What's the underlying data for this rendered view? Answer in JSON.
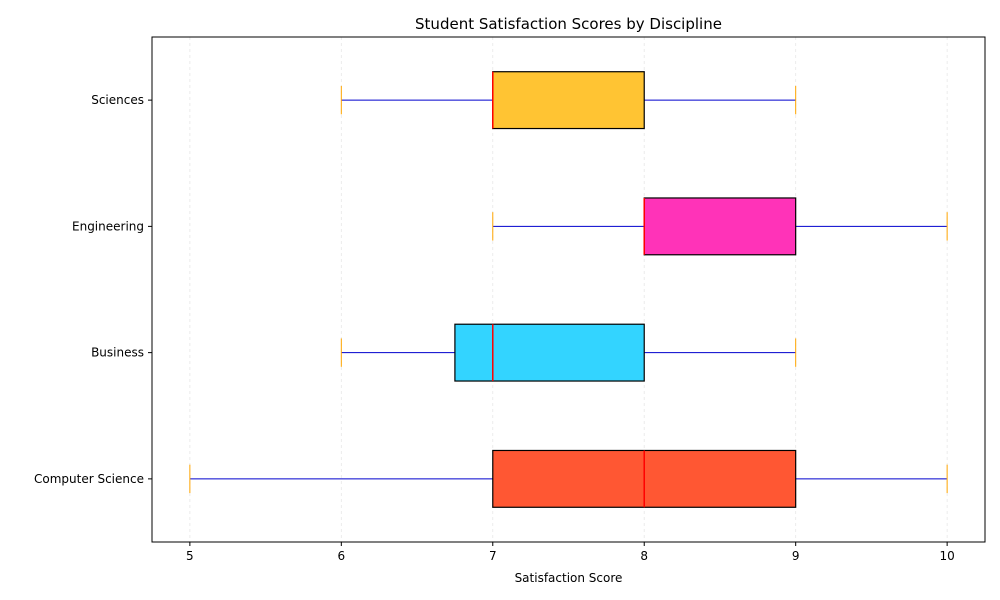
{
  "chart_data": {
    "type": "boxplot",
    "orientation": "horizontal",
    "title": "Student Satisfaction Scores by Discipline",
    "xlabel": "Satisfaction Score",
    "ylabel": "",
    "xlim": [
      4.75,
      10.25
    ],
    "x_ticks": [
      5,
      6,
      7,
      8,
      9,
      10
    ],
    "grid": "x",
    "categories": [
      "Computer Science",
      "Business",
      "Engineering",
      "Sciences"
    ],
    "boxes": [
      {
        "category": "Computer Science",
        "whisker_low": 5,
        "q1": 7,
        "median": 8,
        "q3": 9,
        "whisker_high": 10,
        "color": "#FF5733"
      },
      {
        "category": "Business",
        "whisker_low": 6,
        "q1": 6.75,
        "median": 7,
        "q3": 8,
        "whisker_high": 9,
        "color": "#33D4FF"
      },
      {
        "category": "Engineering",
        "whisker_low": 7,
        "q1": 8,
        "median": 8,
        "q3": 9,
        "whisker_high": 10,
        "color": "#FF33B8"
      },
      {
        "category": "Sciences",
        "whisker_low": 6,
        "q1": 7,
        "median": 7,
        "q3": 8,
        "whisker_high": 9,
        "color": "#FFC433"
      }
    ],
    "colors": {
      "whisker": "#0000CD",
      "cap": "#FFA500",
      "median": "#FF0000",
      "box_edge": "#000000"
    }
  }
}
